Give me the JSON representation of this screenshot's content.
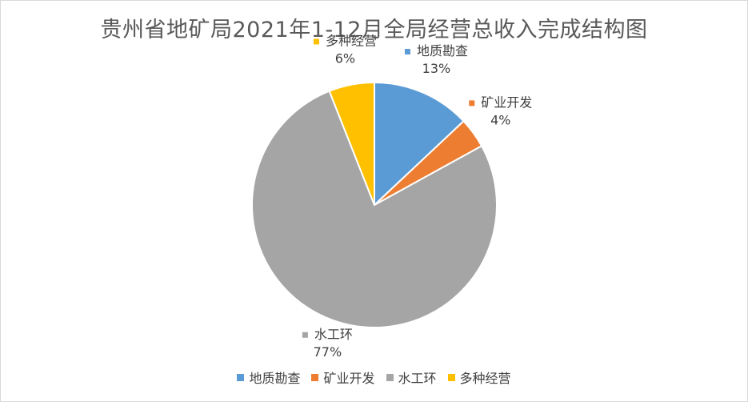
{
  "title": "贵州省地矿局2021年1-12月全局经营总收入完成结构图",
  "colors": {
    "地质勘查": "#5b9bd5",
    "矿业开发": "#ed7d31",
    "水工环": "#a5a5a5",
    "多种经营": "#ffc000"
  },
  "chart_data": {
    "type": "pie",
    "title": "贵州省地矿局2021年1-12月全局经营总收入完成结构图",
    "slices": [
      {
        "label": "地质勘查",
        "value": 13,
        "display": "13%",
        "color": "#5b9bd5"
      },
      {
        "label": "矿业开发",
        "value": 4,
        "display": "4%",
        "color": "#ed7d31"
      },
      {
        "label": "水工环",
        "value": 77,
        "display": "77%",
        "color": "#a5a5a5"
      },
      {
        "label": "多种经营",
        "value": 6,
        "display": "6%",
        "color": "#ffc000"
      }
    ],
    "legend_position": "bottom"
  }
}
